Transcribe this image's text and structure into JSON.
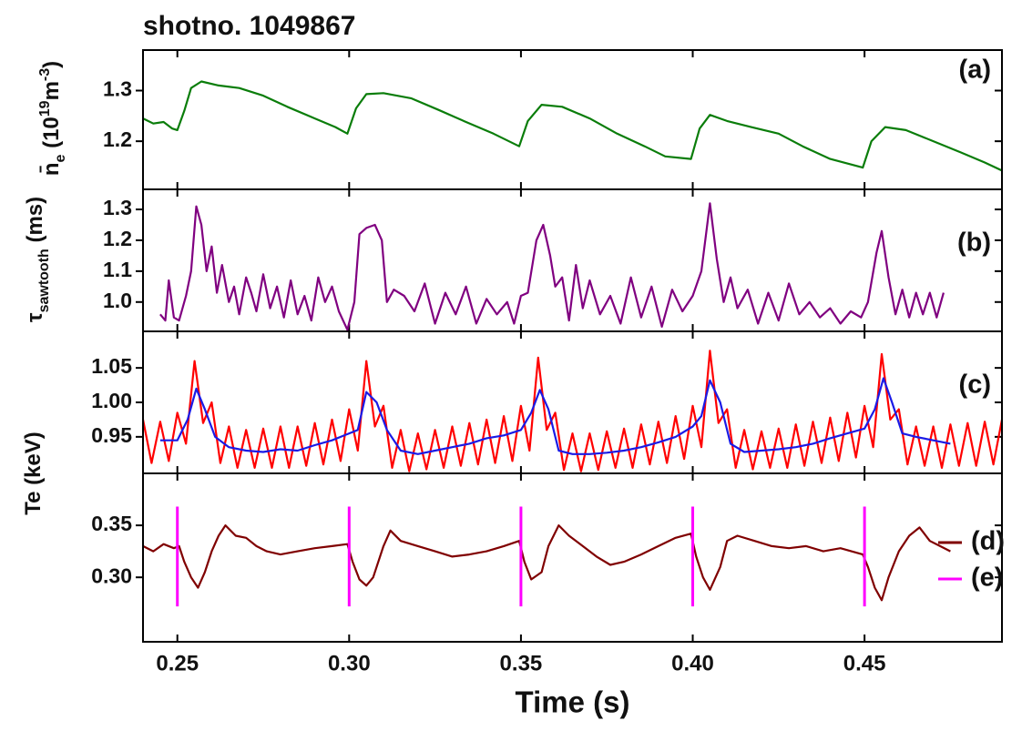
{
  "chart_data": [
    {
      "type": "line",
      "title": "shotno. 1049867",
      "annotation": "(a)",
      "ylabel": [
        {
          "text": "n̄"
        },
        {
          "sub": "e"
        },
        {
          "text": " (10"
        },
        {
          "sup": "19"
        },
        {
          "text": "m"
        },
        {
          "sup": "-3"
        },
        {
          "text": ")"
        }
      ],
      "xlim": [
        0.24,
        0.49
      ],
      "ylim": [
        1.105,
        1.38
      ],
      "yticks": [
        1.2,
        1.3
      ],
      "series": [
        {
          "color": "#0a7d0a",
          "x": [
            0.24,
            0.243,
            0.246,
            0.2485,
            0.25,
            0.252,
            0.254,
            0.257,
            0.262,
            0.268,
            0.275,
            0.282,
            0.29,
            0.296,
            0.2995,
            0.302,
            0.305,
            0.31,
            0.318,
            0.326,
            0.334,
            0.342,
            0.3495,
            0.352,
            0.356,
            0.362,
            0.37,
            0.378,
            0.386,
            0.392,
            0.3995,
            0.402,
            0.405,
            0.41,
            0.417,
            0.425,
            0.432,
            0.44,
            0.4495,
            0.452,
            0.456,
            0.462,
            0.47,
            0.478,
            0.485,
            0.49
          ],
          "values": [
            1.245,
            1.235,
            1.238,
            1.225,
            1.222,
            1.26,
            1.305,
            1.318,
            1.31,
            1.305,
            1.29,
            1.268,
            1.245,
            1.228,
            1.215,
            1.265,
            1.293,
            1.295,
            1.285,
            1.262,
            1.238,
            1.215,
            1.19,
            1.24,
            1.272,
            1.268,
            1.245,
            1.215,
            1.19,
            1.17,
            1.165,
            1.225,
            1.252,
            1.24,
            1.228,
            1.215,
            1.19,
            1.165,
            1.148,
            1.2,
            1.228,
            1.222,
            1.2,
            1.178,
            1.158,
            1.142
          ]
        }
      ]
    },
    {
      "type": "line",
      "annotation": "(b)",
      "ylabel": [
        {
          "text": "τ"
        },
        {
          "sub": "sawtooth"
        },
        {
          "text": " (ms)"
        }
      ],
      "xlim": [
        0.24,
        0.49
      ],
      "ylim": [
        0.905,
        1.365
      ],
      "yticks": [
        {
          "value": 1.0,
          "label": "1.0"
        },
        1.1,
        1.2,
        1.3
      ],
      "series": [
        {
          "color": "#800080",
          "x": [
            0.245,
            0.2465,
            0.2475,
            0.249,
            0.2505,
            0.2525,
            0.254,
            0.2555,
            0.257,
            0.2585,
            0.26,
            0.2615,
            0.263,
            0.265,
            0.2665,
            0.268,
            0.27,
            0.2715,
            0.273,
            0.275,
            0.277,
            0.279,
            0.281,
            0.283,
            0.285,
            0.287,
            0.289,
            0.291,
            0.293,
            0.295,
            0.297,
            0.2995,
            0.3015,
            0.303,
            0.305,
            0.3075,
            0.3095,
            0.311,
            0.313,
            0.316,
            0.319,
            0.322,
            0.325,
            0.328,
            0.331,
            0.334,
            0.337,
            0.34,
            0.343,
            0.346,
            0.348,
            0.35,
            0.352,
            0.3545,
            0.3565,
            0.3585,
            0.36,
            0.362,
            0.364,
            0.366,
            0.368,
            0.37,
            0.373,
            0.376,
            0.379,
            0.382,
            0.385,
            0.388,
            0.391,
            0.394,
            0.397,
            0.4,
            0.4025,
            0.405,
            0.407,
            0.409,
            0.411,
            0.413,
            0.416,
            0.419,
            0.422,
            0.425,
            0.428,
            0.431,
            0.434,
            0.437,
            0.44,
            0.443,
            0.446,
            0.449,
            0.451,
            0.4535,
            0.455,
            0.457,
            0.459,
            0.461,
            0.463,
            0.465,
            0.467,
            0.469,
            0.471,
            0.473
          ],
          "values": [
            0.96,
            0.94,
            1.07,
            0.95,
            0.94,
            1.02,
            1.1,
            1.31,
            1.25,
            1.1,
            1.18,
            1.03,
            1.12,
            1.0,
            1.05,
            0.96,
            1.08,
            1.03,
            0.97,
            1.09,
            0.98,
            1.05,
            0.95,
            1.07,
            0.96,
            1.02,
            0.94,
            1.08,
            1.0,
            1.05,
            0.97,
            0.91,
            1.0,
            1.22,
            1.24,
            1.25,
            1.2,
            1.0,
            1.04,
            1.02,
            0.97,
            1.06,
            0.93,
            1.03,
            0.96,
            1.05,
            0.93,
            1.01,
            0.96,
            1.0,
            0.93,
            1.02,
            1.03,
            1.2,
            1.25,
            1.15,
            1.05,
            1.08,
            0.94,
            1.12,
            0.98,
            1.07,
            0.96,
            1.02,
            0.93,
            1.08,
            0.95,
            1.05,
            0.92,
            1.04,
            0.97,
            1.02,
            1.1,
            1.32,
            1.14,
            1.0,
            1.08,
            0.98,
            1.04,
            0.93,
            1.03,
            0.94,
            1.06,
            0.96,
            1.0,
            0.95,
            0.98,
            0.93,
            0.97,
            0.95,
            1.0,
            1.16,
            1.23,
            1.08,
            0.96,
            1.04,
            0.95,
            1.03,
            0.96,
            1.03,
            0.95,
            1.03
          ]
        }
      ]
    },
    {
      "type": "line",
      "annotation": "(c)",
      "ylabel": [
        {
          "text": "Te (keV)"
        }
      ],
      "xlim": [
        0.24,
        0.49
      ],
      "ylim": [
        0.897,
        1.103
      ],
      "yticks": [
        0.95,
        {
          "value": 1.0,
          "label": "1.00"
        },
        1.05
      ],
      "series": [
        {
          "color": "#ff0000",
          "x": [
            0.24,
            0.2425,
            0.245,
            0.2475,
            0.25,
            0.2525,
            0.255,
            0.2575,
            0.26,
            0.2625,
            0.265,
            0.2675,
            0.27,
            0.2725,
            0.275,
            0.2775,
            0.28,
            0.2825,
            0.285,
            0.2875,
            0.29,
            0.2925,
            0.295,
            0.2975,
            0.3,
            0.3025,
            0.305,
            0.3075,
            0.31,
            0.3125,
            0.315,
            0.3175,
            0.32,
            0.3225,
            0.325,
            0.3275,
            0.33,
            0.3325,
            0.335,
            0.3375,
            0.34,
            0.3425,
            0.345,
            0.3475,
            0.35,
            0.3525,
            0.355,
            0.3575,
            0.36,
            0.3625,
            0.365,
            0.3675,
            0.37,
            0.3725,
            0.375,
            0.3775,
            0.38,
            0.3825,
            0.385,
            0.3875,
            0.39,
            0.3925,
            0.395,
            0.3975,
            0.4,
            0.4025,
            0.405,
            0.4075,
            0.41,
            0.4125,
            0.415,
            0.4175,
            0.42,
            0.4225,
            0.425,
            0.4275,
            0.43,
            0.4325,
            0.435,
            0.4375,
            0.44,
            0.4425,
            0.445,
            0.4475,
            0.45,
            0.4525,
            0.455,
            0.4575,
            0.46,
            0.4625,
            0.465,
            0.4675,
            0.47,
            0.4725,
            0.475,
            0.4775,
            0.48,
            0.4825,
            0.485,
            0.4875,
            0.49
          ],
          "values": [
            0.975,
            0.912,
            0.972,
            0.915,
            0.985,
            0.94,
            1.06,
            0.97,
            1.0,
            0.912,
            0.965,
            0.905,
            0.96,
            0.905,
            0.962,
            0.905,
            0.965,
            0.905,
            0.965,
            0.908,
            0.97,
            0.91,
            0.975,
            0.915,
            0.99,
            0.93,
            1.06,
            0.965,
            0.995,
            0.905,
            0.96,
            0.9,
            0.955,
            0.903,
            0.96,
            0.905,
            0.965,
            0.908,
            0.97,
            0.91,
            0.975,
            0.912,
            0.98,
            0.915,
            0.995,
            0.93,
            1.065,
            0.96,
            0.985,
            0.902,
            0.955,
            0.9,
            0.955,
            0.902,
            0.958,
            0.905,
            0.962,
            0.905,
            0.968,
            0.91,
            0.972,
            0.912,
            0.98,
            0.918,
            0.995,
            0.935,
            1.075,
            0.97,
            0.99,
            0.905,
            0.96,
            0.903,
            0.958,
            0.905,
            0.962,
            0.905,
            0.968,
            0.908,
            0.972,
            0.912,
            0.978,
            0.915,
            0.985,
            0.92,
            0.995,
            0.935,
            1.07,
            0.975,
            0.99,
            0.91,
            0.965,
            0.908,
            0.965,
            0.905,
            0.968,
            0.908,
            0.97,
            0.908,
            0.972,
            0.91,
            0.975
          ]
        },
        {
          "color": "#1a1ae6",
          "x": [
            0.245,
            0.25,
            0.253,
            0.2555,
            0.258,
            0.261,
            0.265,
            0.27,
            0.275,
            0.28,
            0.285,
            0.29,
            0.295,
            0.3,
            0.3025,
            0.305,
            0.308,
            0.311,
            0.315,
            0.32,
            0.325,
            0.33,
            0.335,
            0.34,
            0.345,
            0.35,
            0.353,
            0.3555,
            0.358,
            0.361,
            0.365,
            0.37,
            0.375,
            0.38,
            0.385,
            0.39,
            0.395,
            0.4,
            0.4025,
            0.405,
            0.408,
            0.411,
            0.415,
            0.42,
            0.425,
            0.43,
            0.435,
            0.44,
            0.445,
            0.45,
            0.453,
            0.4555,
            0.458,
            0.461,
            0.465,
            0.47,
            0.475
          ],
          "values": [
            0.945,
            0.945,
            0.975,
            1.02,
            0.99,
            0.95,
            0.935,
            0.93,
            0.928,
            0.932,
            0.93,
            0.938,
            0.945,
            0.955,
            0.96,
            1.015,
            1.0,
            0.96,
            0.93,
            0.925,
            0.93,
            0.935,
            0.94,
            0.948,
            0.952,
            0.96,
            0.985,
            1.018,
            0.99,
            0.93,
            0.925,
            0.925,
            0.927,
            0.93,
            0.935,
            0.942,
            0.95,
            0.965,
            0.98,
            1.032,
            1.0,
            0.94,
            0.928,
            0.93,
            0.932,
            0.935,
            0.94,
            0.948,
            0.955,
            0.962,
            0.99,
            1.035,
            1.0,
            0.955,
            0.95,
            0.945,
            0.94
          ]
        }
      ]
    },
    {
      "type": "line",
      "xlabel": "Time (s)",
      "xlim": [
        0.24,
        0.49
      ],
      "ylim": [
        0.238,
        0.4
      ],
      "yticks": [
        {
          "value": 0.3,
          "label": "0.30"
        },
        0.35
      ],
      "xticks": [
        0.25,
        {
          "value": 0.3,
          "label": "0.30"
        },
        0.35,
        {
          "value": 0.4,
          "label": "0.40"
        },
        0.45
      ],
      "series": [
        {
          "name": "(d)",
          "color": "#800000",
          "x": [
            0.24,
            0.243,
            0.246,
            0.249,
            0.2505,
            0.252,
            0.254,
            0.256,
            0.258,
            0.26,
            0.262,
            0.264,
            0.267,
            0.27,
            0.273,
            0.276,
            0.28,
            0.285,
            0.29,
            0.295,
            0.2995,
            0.301,
            0.303,
            0.305,
            0.307,
            0.31,
            0.312,
            0.315,
            0.32,
            0.325,
            0.33,
            0.335,
            0.34,
            0.345,
            0.3495,
            0.351,
            0.353,
            0.356,
            0.358,
            0.361,
            0.364,
            0.368,
            0.372,
            0.376,
            0.38,
            0.385,
            0.39,
            0.395,
            0.3995,
            0.401,
            0.403,
            0.405,
            0.408,
            0.41,
            0.413,
            0.418,
            0.423,
            0.428,
            0.433,
            0.438,
            0.443,
            0.4495,
            0.451,
            0.453,
            0.455,
            0.457,
            0.46,
            0.463,
            0.466,
            0.469,
            0.472,
            0.475
          ],
          "values": [
            0.33,
            0.325,
            0.332,
            0.328,
            0.33,
            0.315,
            0.3,
            0.29,
            0.305,
            0.325,
            0.34,
            0.35,
            0.34,
            0.338,
            0.33,
            0.325,
            0.322,
            0.325,
            0.328,
            0.33,
            0.332,
            0.315,
            0.298,
            0.292,
            0.3,
            0.33,
            0.345,
            0.335,
            0.33,
            0.325,
            0.32,
            0.322,
            0.325,
            0.33,
            0.335,
            0.315,
            0.298,
            0.305,
            0.33,
            0.35,
            0.34,
            0.33,
            0.32,
            0.312,
            0.315,
            0.322,
            0.33,
            0.338,
            0.342,
            0.32,
            0.3,
            0.288,
            0.31,
            0.335,
            0.34,
            0.335,
            0.33,
            0.328,
            0.33,
            0.325,
            0.328,
            0.322,
            0.31,
            0.29,
            0.278,
            0.3,
            0.325,
            0.34,
            0.348,
            0.335,
            0.33,
            0.325
          ]
        },
        {
          "name": "(e)",
          "color": "#ff00ff",
          "type": "vline",
          "x": [
            0.25,
            0.3,
            0.35,
            0.4,
            0.45
          ],
          "ymin": 0.272,
          "ymax": 0.368
        }
      ]
    }
  ]
}
